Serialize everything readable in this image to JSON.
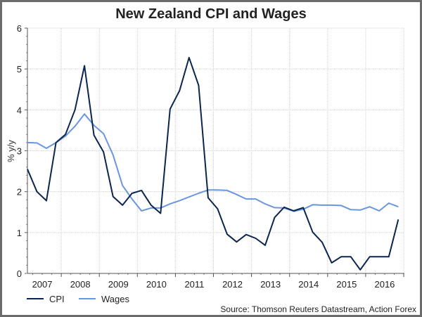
{
  "chart_data": {
    "type": "line",
    "title": "New Zealand CPI and Wages",
    "ylabel": "% y/y",
    "xlabel": "",
    "ylim": [
      0,
      6
    ],
    "yticks": [
      "0",
      "1",
      "2",
      "3",
      "4",
      "5",
      "6"
    ],
    "xtick_labels": [
      "2007",
      "2008",
      "2009",
      "2010",
      "2011",
      "2012",
      "2013",
      "2014",
      "2015",
      "2016"
    ],
    "x_frequency": "quarterly, 2007 Q1 – 2016 Q4",
    "grid": true,
    "legend_position": "bottom-left",
    "source": "Source: Thomson Reuters Datastream, Action Forex",
    "series": [
      {
        "name": "CPI",
        "color": "#0b2550",
        "values": [
          2.55,
          2.0,
          1.78,
          3.2,
          3.4,
          4.0,
          5.08,
          3.38,
          2.97,
          1.88,
          1.67,
          1.96,
          2.03,
          1.67,
          1.47,
          4.02,
          4.47,
          5.28,
          4.6,
          1.85,
          1.58,
          0.96,
          0.77,
          0.95,
          0.86,
          0.69,
          1.37,
          1.62,
          1.53,
          1.61,
          1.01,
          0.76,
          0.26,
          0.41,
          0.41,
          0.09,
          0.41,
          0.41,
          0.41,
          1.32
        ]
      },
      {
        "name": "Wages",
        "color": "#6a96e0",
        "values": [
          3.2,
          3.19,
          3.06,
          3.2,
          3.36,
          3.6,
          3.9,
          3.62,
          3.42,
          2.9,
          2.15,
          1.82,
          1.53,
          1.6,
          1.6,
          1.7,
          1.78,
          1.87,
          1.96,
          2.04,
          2.04,
          2.03,
          1.93,
          1.82,
          1.82,
          1.7,
          1.61,
          1.6,
          1.52,
          1.57,
          1.68,
          1.67,
          1.67,
          1.66,
          1.56,
          1.55,
          1.63,
          1.53,
          1.72,
          1.63
        ]
      }
    ]
  }
}
